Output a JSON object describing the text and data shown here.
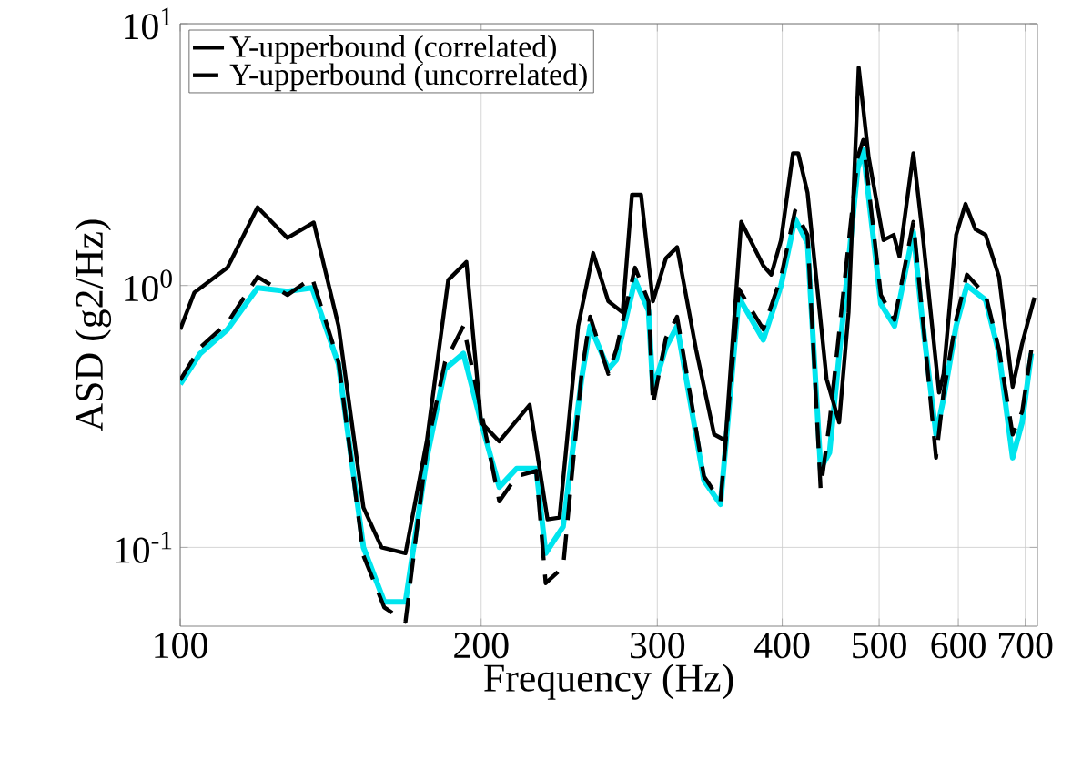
{
  "chart_data": {
    "type": "line",
    "xlabel": "Frequency (Hz)",
    "ylabel": "ASD (g2/Hz)",
    "log": "xy",
    "grid": true,
    "legend": "top left",
    "marker": "none",
    "xlim": [
      100,
      720
    ],
    "ylim": [
      0.05,
      10
    ],
    "xticks": [
      100,
      200,
      300,
      400,
      500,
      600,
      700
    ],
    "yticks": [
      {
        "value": 0.1,
        "label": "10$^{-1}$"
      },
      {
        "value": 1,
        "label": "10$^{0}$"
      },
      {
        "value": 10,
        "label": "10$^{1}$"
      }
    ],
    "series": [
      {
        "color": "#00e5ee",
        "line_style": "solid",
        "x": [
          100,
          104.7,
          111.5,
          119.5,
          128,
          135.5,
          144,
          152.5,
          160,
          168,
          176.5,
          184,
          192,
          200,
          208.5,
          217,
          227,
          232,
          241.5,
          252,
          257,
          268,
          273,
          285,
          294,
          297,
          306,
          314,
          334,
          347,
          362,
          383,
          399,
          412,
          424,
          437,
          446,
          476,
          482,
          502,
          518,
          541,
          552,
          570,
          580,
          597,
          612,
          639,
          659,
          680,
          695,
          710
        ],
        "values": [
          0.42,
          0.55,
          0.68,
          0.98,
          0.95,
          0.98,
          0.5,
          0.1,
          0.062,
          0.062,
          0.22,
          0.48,
          0.55,
          0.3,
          0.17,
          0.2,
          0.2,
          0.095,
          0.12,
          0.44,
          0.7,
          0.48,
          0.52,
          1.05,
          0.8,
          0.4,
          0.58,
          0.7,
          0.18,
          0.146,
          0.9,
          0.62,
          1.0,
          1.8,
          1.45,
          0.2,
          0.23,
          2.8,
          3.3,
          0.85,
          0.7,
          1.6,
          0.75,
          0.27,
          0.37,
          0.7,
          1.0,
          0.88,
          0.55,
          0.22,
          0.3,
          0.55
        ]
      },
      {
        "name": "Y-upperbound (correlated)",
        "color": "#000000",
        "line_style": "solid",
        "x": [
          100,
          103.3,
          111.5,
          119.5,
          128,
          136,
          144,
          152.5,
          159,
          168,
          176.5,
          185.4,
          193.3,
          200,
          208.5,
          223.6,
          233,
          239.5,
          250,
          258.8,
          268,
          277,
          283,
          289,
          297,
          306,
          314,
          328,
          342,
          351,
          364,
          383,
          390,
          399,
          410,
          415,
          424,
          443,
          456,
          466,
          477,
          488,
          505,
          517,
          524,
          541,
          552,
          574,
          580,
          597,
          610,
          624,
          639,
          659,
          680,
          695,
          715
        ],
        "values": [
          0.68,
          0.94,
          1.17,
          1.99,
          1.52,
          1.74,
          0.7,
          0.142,
          0.1,
          0.095,
          0.256,
          1.05,
          1.23,
          0.3,
          0.254,
          0.35,
          0.128,
          0.13,
          0.7,
          1.33,
          0.87,
          0.79,
          2.22,
          2.22,
          0.87,
          1.27,
          1.4,
          0.57,
          0.27,
          0.256,
          1.75,
          1.19,
          1.1,
          1.49,
          3.2,
          3.2,
          2.26,
          0.44,
          0.3,
          0.79,
          6.8,
          3.1,
          1.49,
          1.56,
          1.29,
          3.2,
          1.64,
          0.39,
          0.46,
          1.56,
          2.05,
          1.64,
          1.56,
          1.08,
          0.41,
          0.6,
          0.9
        ]
      },
      {
        "name": "Y-upperbound (uncorrelated)",
        "color": "#000000",
        "line_style": "dashed",
        "x": [
          100,
          104.7,
          111.5,
          119.5,
          128,
          135.5,
          144,
          152.5,
          160,
          168,
          176.5,
          184,
          192,
          200,
          208.5,
          217,
          227,
          232,
          241.5,
          252,
          257,
          268,
          273,
          285,
          294,
          297,
          306,
          314,
          334,
          347,
          362,
          383,
          399,
          412,
          424,
          437,
          446,
          476,
          482,
          502,
          518,
          541,
          552,
          570,
          580,
          597,
          612,
          639,
          659,
          680,
          695,
          710
        ],
        "values": [
          0.435,
          0.58,
          0.72,
          1.08,
          0.92,
          1.07,
          0.51,
          0.093,
          0.059,
          0.052,
          0.24,
          0.51,
          0.7,
          0.33,
          0.15,
          0.187,
          0.196,
          0.073,
          0.084,
          0.46,
          0.76,
          0.46,
          0.57,
          1.17,
          0.87,
          0.35,
          0.63,
          0.76,
          0.187,
          0.15,
          0.97,
          0.68,
          1.08,
          1.93,
          1.56,
          0.167,
          0.3,
          3.1,
          3.6,
          0.92,
          0.74,
          1.75,
          0.79,
          0.22,
          0.39,
          0.74,
          1.1,
          0.92,
          0.57,
          0.27,
          0.33,
          0.57
        ]
      }
    ]
  }
}
